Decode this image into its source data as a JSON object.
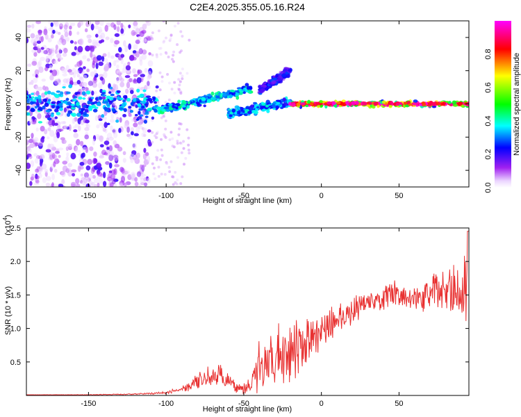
{
  "chart_data": [
    {
      "type": "heatmap",
      "title": "C2E4.2025.355.05.16.R24",
      "xlabel": "Height of straight line (km)",
      "ylabel": "Frequency (Hz)",
      "xlim": [
        -190,
        95
      ],
      "ylim": [
        -50,
        50
      ],
      "xticks": [
        -150,
        -100,
        -50,
        0,
        50
      ],
      "yticks": [
        -40,
        -20,
        0,
        20,
        40
      ],
      "colorbar_label": "Normalized spectral amplitude",
      "colorbar_range": [
        0,
        1
      ],
      "colorbar_ticks": [
        "0.0",
        "0.2",
        "0.4",
        "0.6",
        "0.8"
      ],
      "colorbar_tick_values": [
        0,
        0.2,
        0.4,
        0.6,
        0.8
      ],
      "noise_region_x": [
        -190,
        -110
      ],
      "features": [
        {
          "name": "dispersed-band",
          "x": [
            -195,
            -105
          ],
          "freq": 0,
          "spread": 6,
          "amplitude": 0.35
        },
        {
          "name": "rising-branch",
          "x": [
            -105,
            -45
          ],
          "freq_start": -4,
          "freq_end": 9,
          "amplitude": 0.4
        },
        {
          "name": "secondary-branch",
          "x": [
            -60,
            -20
          ],
          "freq_start": -6,
          "freq_end": 1,
          "amplitude": 0.35
        },
        {
          "name": "steep-branch",
          "x": [
            -40,
            -20
          ],
          "freq_start": 8,
          "freq_end": 20,
          "amplitude": 0.25
        },
        {
          "name": "steady-tone",
          "x": [
            -20,
            95
          ],
          "freq": 0,
          "amplitude": 0.95
        }
      ]
    },
    {
      "type": "line",
      "title": "",
      "xlabel": "Height of straight line (km)",
      "ylabel": "SNR (10 * v/v)",
      "y_multiplier": "(x10",
      "y_multiplier_exp": "4",
      "y_multiplier_close": ")",
      "xlim": [
        -190,
        95
      ],
      "ylim": [
        0,
        2.5
      ],
      "xticks": [
        -150,
        -100,
        -50,
        0,
        50
      ],
      "yticks": [
        "0.5",
        "1.0",
        "1.5",
        "2.0",
        "2.5"
      ],
      "ytick_values": [
        0.5,
        1.0,
        1.5,
        2.0,
        2.5
      ],
      "series": [
        {
          "name": "SNR",
          "color": "#e83030",
          "x": [
            -190,
            -150,
            -120,
            -100,
            -90,
            -80,
            -72,
            -65,
            -58,
            -50,
            -45,
            -40,
            -35,
            -30,
            -25,
            -20,
            -15,
            -10,
            -5,
            0,
            5,
            10,
            15,
            20,
            25,
            30,
            35,
            40,
            45,
            50,
            55,
            60,
            65,
            70,
            75,
            80,
            85,
            90,
            95
          ],
          "mean": [
            0.01,
            0.01,
            0.02,
            0.04,
            0.1,
            0.2,
            0.28,
            0.3,
            0.15,
            0.1,
            0.2,
            0.38,
            0.42,
            0.55,
            0.65,
            0.72,
            0.75,
            0.8,
            0.85,
            0.95,
            1.05,
            1.15,
            1.2,
            1.25,
            1.35,
            1.4,
            1.42,
            1.45,
            1.45,
            1.5,
            1.5,
            1.45,
            1.45,
            1.5,
            1.55,
            1.6,
            1.55,
            1.5,
            1.55
          ],
          "amp": [
            0.0,
            0.005,
            0.01,
            0.02,
            0.05,
            0.12,
            0.18,
            0.2,
            0.12,
            0.1,
            0.2,
            0.5,
            0.35,
            0.5,
            0.6,
            0.55,
            0.45,
            0.35,
            0.3,
            0.25,
            0.25,
            0.25,
            0.25,
            0.2,
            0.2,
            0.18,
            0.15,
            0.2,
            0.25,
            0.25,
            0.2,
            0.15,
            0.2,
            0.3,
            0.3,
            0.3,
            0.4,
            0.4,
            0.9
          ]
        }
      ]
    }
  ]
}
